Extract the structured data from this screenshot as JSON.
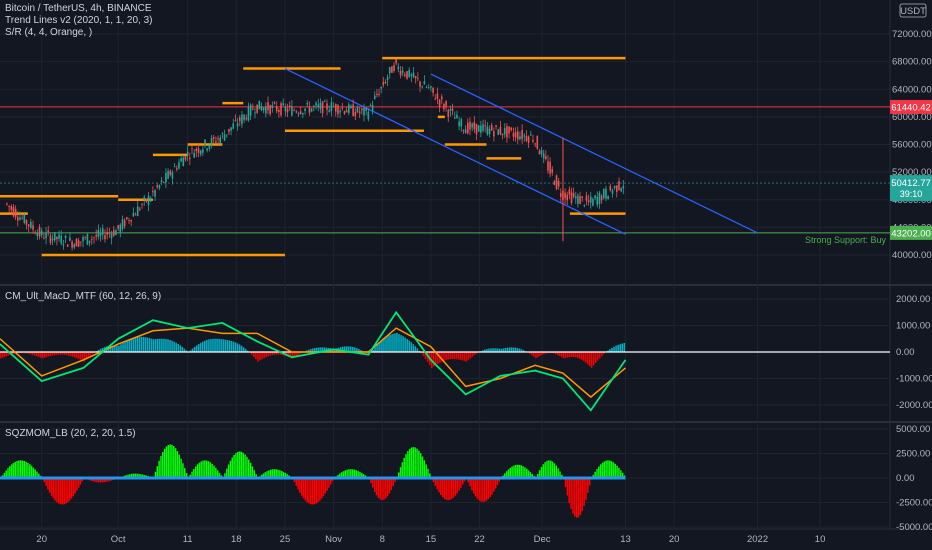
{
  "header": {
    "symbol_line": "Bitcoin / TetherUS, 4h, BINANCE",
    "indicator_1": "Trend Lines v2 (2020, 1, 1, 20, 3)",
    "indicator_2": "S/R (4, 4, Orange, )"
  },
  "currency": "USDT",
  "price_pane": {
    "labels": [
      "72000.00",
      "68000.00",
      "64000.00",
      "60000.00",
      "56000.00",
      "52000.00",
      "48000.00",
      "44000.00",
      "40000.00"
    ],
    "current_price": "50412.77",
    "countdown": "39:10",
    "resistance_value": "61440.42",
    "support_value": "43202.00",
    "support_label": "Strong Support: Buy"
  },
  "macd_pane": {
    "title": "CM_Ult_MacD_MTF (60, 12, 26, 9)",
    "labels": [
      "2000.00",
      "1000.00",
      "0.00",
      "-1000.00",
      "-2000.00"
    ]
  },
  "sqz_pane": {
    "title": "SQZMOM_LB (20, 2, 20, 1.5)",
    "labels": [
      "5000.00",
      "2500.00",
      "0.00",
      "-2500.00",
      "-5000.00"
    ]
  },
  "date_axis": {
    "labels": [
      "20",
      "Oct",
      "11",
      "18",
      "25",
      "Nov",
      "8",
      "15",
      "22",
      "Dec",
      "13",
      "20",
      "2022",
      "10"
    ]
  },
  "colors": {
    "background": "#131722",
    "sr_level": "#ff9800",
    "trendline": "#2962ff",
    "resistance": "#f23645",
    "support": "#4caf50",
    "price_badge": "#26a69a",
    "macd_fast": "#00e676",
    "macd_slow": "#ff9800",
    "hist_up": "#00bcd4",
    "hist_down": "#ff0000",
    "sqz_up": "#00ff00",
    "sqz_down": "#ff0000",
    "sqz_zero": "#2196f3"
  },
  "chart_data": [
    {
      "type": "line",
      "title": "Bitcoin / TetherUS, 4h, BINANCE",
      "x": [
        "Sep 15",
        "Sep 20",
        "Sep 25",
        "Oct 1",
        "Oct 6",
        "Oct 11",
        "Oct 16",
        "Oct 21",
        "Oct 26",
        "Nov 1",
        "Nov 6",
        "Nov 10",
        "Nov 15",
        "Nov 20",
        "Nov 25",
        "Nov 30",
        "Dec 4",
        "Dec 8",
        "Dec 13"
      ],
      "y": [
        47500,
        43000,
        41800,
        43500,
        48500,
        54500,
        57000,
        61500,
        61000,
        61500,
        60500,
        67500,
        64000,
        58500,
        58000,
        57000,
        49000,
        47500,
        50412
      ],
      "sr_levels": [
        {
          "from": "Sep 14",
          "to": "Oct 1",
          "value": 48500
        },
        {
          "from": "Sep 14",
          "to": "Sep 18",
          "value": 46000
        },
        {
          "from": "Sep 20",
          "to": "Oct 25",
          "value": 40000
        },
        {
          "from": "Oct 1",
          "to": "Oct 6",
          "value": 48000
        },
        {
          "from": "Oct 6",
          "to": "Oct 11",
          "value": 54500
        },
        {
          "from": "Oct 11",
          "to": "Oct 16",
          "value": 56000
        },
        {
          "from": "Oct 16",
          "to": "Oct 19",
          "value": 62000
        },
        {
          "from": "Oct 19",
          "to": "Nov 2",
          "value": 67000
        },
        {
          "from": "Oct 25",
          "to": "Nov 14",
          "value": 58000
        },
        {
          "from": "Nov 8",
          "to": "Dec 13",
          "value": 68500
        },
        {
          "from": "Nov 16",
          "to": "Nov 17",
          "value": 60000
        },
        {
          "from": "Nov 17",
          "to": "Nov 23",
          "value": 56000
        },
        {
          "from": "Nov 23",
          "to": "Nov 28",
          "value": 54000
        },
        {
          "from": "Dec 5",
          "to": "Dec 13",
          "value": 46000
        }
      ],
      "resistance": 61440.42,
      "support": 43202.0,
      "current": 50412.77,
      "ylim": [
        38000,
        73000
      ]
    },
    {
      "type": "line",
      "title": "CM_Ult_MacD_MTF (60, 12, 26, 9)",
      "x": [
        "Sep 14",
        "Sep 20",
        "Sep 26",
        "Oct 1",
        "Oct 6",
        "Oct 11",
        "Oct 16",
        "Oct 21",
        "Oct 26",
        "Nov 1",
        "Nov 6",
        "Nov 10",
        "Nov 15",
        "Nov 20",
        "Nov 25",
        "Nov 30",
        "Dec 4",
        "Dec 8",
        "Dec 13"
      ],
      "series": [
        {
          "values": [
            300,
            -1100,
            -600,
            500,
            1200,
            900,
            1100,
            400,
            -200,
            100,
            -100,
            1500,
            -300,
            -1600,
            -900,
            -700,
            -1000,
            -2200,
            -300
          ]
        },
        {
          "values": [
            500,
            -900,
            -300,
            300,
            800,
            900,
            700,
            700,
            0,
            0,
            0,
            900,
            200,
            -1300,
            -1000,
            -500,
            -800,
            -1700,
            -600
          ]
        }
      ],
      "ylim": [
        -2500,
        2200
      ]
    },
    {
      "type": "bar",
      "title": "SQZMOM_LB (20, 2, 20, 1.5)",
      "x": [
        "Sep 14",
        "Sep 20",
        "Sep 26",
        "Oct 1",
        "Oct 6",
        "Oct 11",
        "Oct 16",
        "Oct 21",
        "Oct 26",
        "Nov 1",
        "Nov 6",
        "Nov 10",
        "Nov 15",
        "Nov 20",
        "Nov 25",
        "Nov 30",
        "Dec 4",
        "Dec 8",
        "Dec 13"
      ],
      "values": [
        2000,
        -3000,
        -500,
        500,
        3800,
        2000,
        3000,
        1000,
        -3000,
        1000,
        -2500,
        3500,
        -2500,
        -2700,
        1500,
        2000,
        -4500,
        2000,
        800
      ],
      "ylim": [
        -5500,
        5500
      ]
    }
  ]
}
